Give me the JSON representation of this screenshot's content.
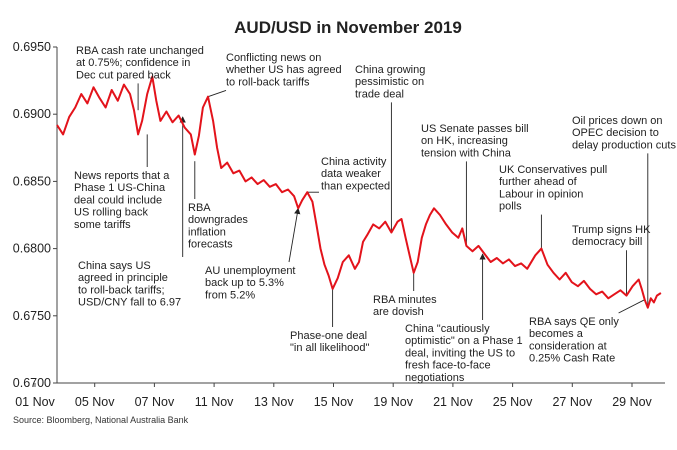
{
  "chart_data": {
    "type": "line",
    "title": "AUD/USD in November 2019",
    "source": "Source: Bloomberg, National Australia Bank",
    "xlabel": "",
    "ylabel": "",
    "ylim": [
      0.67,
      0.695
    ],
    "yticks": [
      "0.6950",
      "0.6900",
      "0.6850",
      "0.6800",
      "0.6750",
      "0.6700"
    ],
    "yvalues": [
      0.695,
      0.69,
      0.685,
      0.68,
      0.675,
      0.67
    ],
    "xlim": [
      0,
      30
    ],
    "xticks": [
      "01 Nov",
      "05 Nov",
      "07 Nov",
      "11 Nov",
      "13 Nov",
      "15 Nov",
      "19 Nov",
      "21 Nov",
      "25 Nov",
      "27 Nov",
      "29 Nov"
    ],
    "grid": false,
    "legend": "none",
    "line_color": "#e3131b",
    "series": [
      {
        "values": [
          [
            0.0,
            0.6892
          ],
          [
            0.3,
            0.6885
          ],
          [
            0.6,
            0.6898
          ],
          [
            0.9,
            0.6905
          ],
          [
            1.2,
            0.6915
          ],
          [
            1.5,
            0.6908
          ],
          [
            1.8,
            0.692
          ],
          [
            2.1,
            0.6912
          ],
          [
            2.4,
            0.6905
          ],
          [
            2.7,
            0.6918
          ],
          [
            3.0,
            0.691
          ],
          [
            3.3,
            0.6922
          ],
          [
            3.6,
            0.6915
          ],
          [
            3.8,
            0.6903
          ],
          [
            4.0,
            0.6885
          ],
          [
            4.2,
            0.6895
          ],
          [
            4.45,
            0.6915
          ],
          [
            4.7,
            0.6928
          ],
          [
            4.9,
            0.691
          ],
          [
            5.1,
            0.6895
          ],
          [
            5.4,
            0.6902
          ],
          [
            5.7,
            0.6894
          ],
          [
            6.0,
            0.6899
          ],
          [
            6.3,
            0.689
          ],
          [
            6.6,
            0.6885
          ],
          [
            6.8,
            0.687
          ],
          [
            7.0,
            0.6884
          ],
          [
            7.2,
            0.6905
          ],
          [
            7.45,
            0.6913
          ],
          [
            7.7,
            0.6895
          ],
          [
            7.9,
            0.6875
          ],
          [
            8.1,
            0.686
          ],
          [
            8.4,
            0.6864
          ],
          [
            8.7,
            0.6856
          ],
          [
            9.0,
            0.6858
          ],
          [
            9.3,
            0.685
          ],
          [
            9.6,
            0.6853
          ],
          [
            9.9,
            0.6848
          ],
          [
            10.2,
            0.6851
          ],
          [
            10.5,
            0.6846
          ],
          [
            10.8,
            0.6848
          ],
          [
            11.1,
            0.6842
          ],
          [
            11.4,
            0.6844
          ],
          [
            11.7,
            0.6839
          ],
          [
            11.9,
            0.683
          ],
          [
            12.1,
            0.6836
          ],
          [
            12.35,
            0.6842
          ],
          [
            12.6,
            0.6835
          ],
          [
            12.8,
            0.6818
          ],
          [
            13.0,
            0.68
          ],
          [
            13.2,
            0.6788
          ],
          [
            13.4,
            0.678
          ],
          [
            13.6,
            0.677
          ],
          [
            13.85,
            0.6778
          ],
          [
            14.1,
            0.679
          ],
          [
            14.4,
            0.6795
          ],
          [
            14.7,
            0.6785
          ],
          [
            14.9,
            0.679
          ],
          [
            15.1,
            0.6805
          ],
          [
            15.3,
            0.681
          ],
          [
            15.6,
            0.6818
          ],
          [
            15.9,
            0.6815
          ],
          [
            16.2,
            0.682
          ],
          [
            16.5,
            0.6812
          ],
          [
            16.8,
            0.682
          ],
          [
            17.0,
            0.6822
          ],
          [
            17.2,
            0.6808
          ],
          [
            17.4,
            0.6795
          ],
          [
            17.6,
            0.6782
          ],
          [
            17.8,
            0.679
          ],
          [
            18.0,
            0.6808
          ],
          [
            18.2,
            0.6818
          ],
          [
            18.4,
            0.6825
          ],
          [
            18.6,
            0.683
          ],
          [
            18.9,
            0.6825
          ],
          [
            19.2,
            0.6818
          ],
          [
            19.5,
            0.6812
          ],
          [
            19.8,
            0.6808
          ],
          [
            20.0,
            0.6815
          ],
          [
            20.2,
            0.6802
          ],
          [
            20.5,
            0.6798
          ],
          [
            20.8,
            0.6802
          ],
          [
            21.1,
            0.6796
          ],
          [
            21.4,
            0.679
          ],
          [
            21.7,
            0.6793
          ],
          [
            22.0,
            0.6789
          ],
          [
            22.3,
            0.6792
          ],
          [
            22.6,
            0.6787
          ],
          [
            22.9,
            0.6789
          ],
          [
            23.2,
            0.6785
          ],
          [
            23.6,
            0.6795
          ],
          [
            23.9,
            0.68
          ],
          [
            24.2,
            0.6788
          ],
          [
            24.5,
            0.6782
          ],
          [
            24.8,
            0.6777
          ],
          [
            25.1,
            0.6782
          ],
          [
            25.4,
            0.6775
          ],
          [
            25.7,
            0.6772
          ],
          [
            26.0,
            0.6776
          ],
          [
            26.3,
            0.677
          ],
          [
            26.6,
            0.6766
          ],
          [
            26.9,
            0.6768
          ],
          [
            27.2,
            0.6763
          ],
          [
            27.5,
            0.6766
          ],
          [
            27.8,
            0.6769
          ],
          [
            28.1,
            0.6765
          ],
          [
            28.4,
            0.6772
          ],
          [
            28.7,
            0.6777
          ],
          [
            28.85,
            0.677
          ],
          [
            29.0,
            0.6762
          ],
          [
            29.15,
            0.6756
          ],
          [
            29.3,
            0.6763
          ],
          [
            29.45,
            0.676
          ],
          [
            29.6,
            0.6765
          ],
          [
            29.8,
            0.6767
          ]
        ]
      }
    ],
    "annotations": [
      {
        "id": "rba-cash-rate",
        "lines": [
          "RBA cash rate unchanged",
          "at 0.75%; confidence in",
          "Dec cut pared back"
        ],
        "x": 4.0,
        "y": 0.6903
      },
      {
        "id": "phase1-us-china",
        "lines": [
          "News reports that a",
          "Phase 1 US-China",
          "deal could include",
          "US rolling back",
          "some tariffs"
        ],
        "x": 4.45,
        "y": 0.6885
      },
      {
        "id": "china-says-us",
        "lines": [
          "China says US",
          "agreed in principle",
          "to roll-back tariffs;",
          "USD/CNY fall to 6.97"
        ],
        "x": 6.2,
        "y": 0.6898
      },
      {
        "id": "conflicting-news",
        "lines": [
          "Conflicting news on",
          "whether US has agreed",
          "to roll-back tariffs"
        ],
        "x": 7.45,
        "y": 0.6913
      },
      {
        "id": "rba-downgrades",
        "lines": [
          "RBA",
          "downgrades",
          "inflation",
          "forecasts"
        ],
        "x": 6.8,
        "y": 0.6865
      },
      {
        "id": "au-unemployment",
        "lines": [
          "AU unemployment",
          "back up to 5.3%",
          "from 5.2%"
        ],
        "x": 11.9,
        "y": 0.683
      },
      {
        "id": "china-activity",
        "lines": [
          "China activity",
          "data weaker",
          "than expected"
        ],
        "x": 12.35,
        "y": 0.6842
      },
      {
        "id": "phase-one-deal",
        "lines": [
          "Phase-one deal",
          "\"in all likelihood\""
        ],
        "x": 13.6,
        "y": 0.677
      },
      {
        "id": "china-pessimistic",
        "lines": [
          "China growing",
          "pessimistic on",
          "trade deal"
        ],
        "x": 16.5,
        "y": 0.6812
      },
      {
        "id": "rba-minutes",
        "lines": [
          "RBA minutes",
          "are dovish"
        ],
        "x": 17.6,
        "y": 0.6782
      },
      {
        "id": "us-senate",
        "lines": [
          "US Senate passes bill",
          "on HK, increasing",
          "tension with China"
        ],
        "x": 20.2,
        "y": 0.6802
      },
      {
        "id": "china-optimistic",
        "lines": [
          "China \"cautiously",
          "optimistic\" on a Phase 1",
          "deal, inviting the US to",
          "fresh face-to-face",
          "negotiations"
        ],
        "x": 21.0,
        "y": 0.6796
      },
      {
        "id": "uk-conservatives",
        "lines": [
          "UK Conservatives pull",
          "further ahead of",
          "Labour in opinion",
          "polls"
        ],
        "x": 23.9,
        "y": 0.68
      },
      {
        "id": "trump-hk",
        "lines": [
          "Trump signs HK",
          "democracy bill"
        ],
        "x": 28.1,
        "y": 0.6765
      },
      {
        "id": "rba-qe",
        "lines": [
          "RBA says QE only",
          "becomes a",
          "consideration at",
          "0.25% Cash Rate"
        ],
        "x": 29.0,
        "y": 0.6762
      },
      {
        "id": "oil-prices",
        "lines": [
          "Oil prices down on",
          "OPEC decision to",
          "delay production cuts"
        ],
        "x": 29.15,
        "y": 0.6756
      }
    ]
  }
}
